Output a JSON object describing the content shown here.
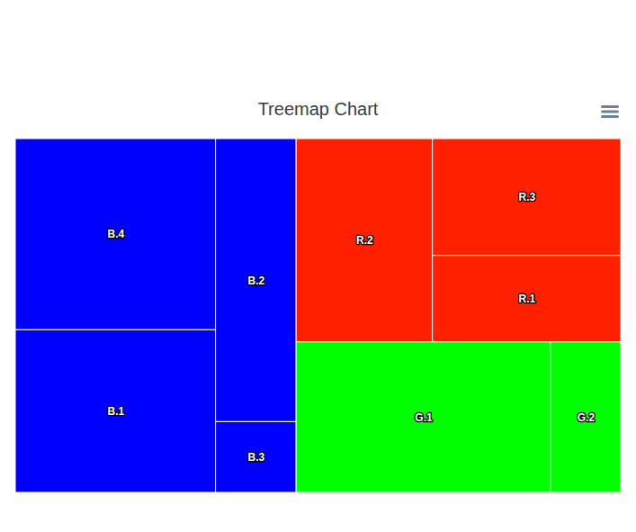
{
  "chart_data": {
    "type": "treemap",
    "title": "Treemap Chart",
    "tick_labels": false,
    "series": [
      {
        "color": "#0000ff",
        "categories": [
          "B.4",
          "B.1",
          "B.2",
          "B.3"
        ],
        "values": [
          47,
          40,
          28,
          7
        ]
      },
      {
        "color": "#ff2000",
        "categories": [
          "R.2",
          "R.3",
          "R.1"
        ],
        "values": [
          34,
          27,
          20
        ]
      },
      {
        "color": "#00ff00",
        "categories": [
          "G.1",
          "G.2"
        ],
        "values": [
          47,
          13
        ]
      }
    ]
  }
}
